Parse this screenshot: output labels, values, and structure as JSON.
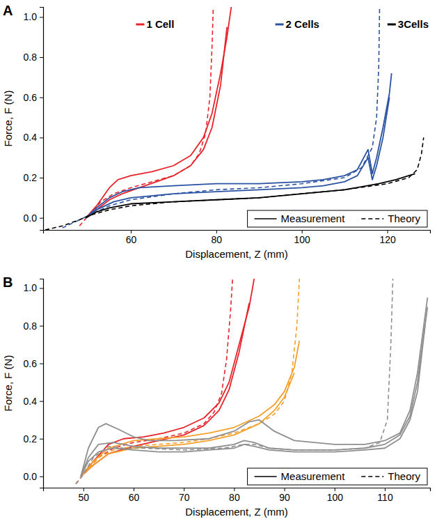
{
  "chart_data": [
    {
      "type": "line",
      "panel": "A",
      "x_label": "Displacement, Z (mm)",
      "y_label": "Force, F (N)",
      "xlim": [
        39.5,
        130
      ],
      "xticks": [
        60,
        80,
        100,
        120
      ],
      "ylim": [
        -0.06,
        1.05
      ],
      "yticks": [
        {
          "value": 0,
          "label": "0.0"
        },
        0.2,
        0.4,
        0.6,
        0.8,
        {
          "value": 1,
          "label": "1.0"
        }
      ],
      "legend": "lower right",
      "line_styles": [
        {
          "label": "Measurement",
          "line_style": "solid"
        },
        {
          "label": "Theory",
          "line_style": "dashed"
        }
      ],
      "series": [
        {
          "name": "1 Cell",
          "color": "#e8232a",
          "line_style": "solid",
          "x": [
            49.5,
            52,
            55,
            57,
            60,
            65,
            70,
            74,
            77,
            79,
            81,
            82.5,
            83.5
          ],
          "values": [
            0,
            0.06,
            0.15,
            0.19,
            0.21,
            0.23,
            0.26,
            0.31,
            0.4,
            0.52,
            0.72,
            0.9,
            1.05
          ]
        },
        {
          "name": "1 Cell",
          "color": "#e8232a",
          "line_style": "solid",
          "x": [
            49.5,
            52,
            55,
            58,
            62,
            66,
            70,
            74,
            77,
            79,
            81,
            82.5
          ],
          "values": [
            0,
            0.04,
            0.09,
            0.12,
            0.15,
            0.18,
            0.21,
            0.26,
            0.34,
            0.45,
            0.66,
            0.95
          ]
        },
        {
          "name": "1 Cell",
          "color": "#e8232a",
          "line_style": "dashed",
          "x": [
            48,
            50,
            53,
            56,
            60,
            65,
            70,
            74,
            76,
            77.5,
            78.5,
            79,
            79.3
          ],
          "values": [
            -0.04,
            0.01,
            0.08,
            0.12,
            0.15,
            0.18,
            0.21,
            0.26,
            0.32,
            0.42,
            0.6,
            0.85,
            1.05
          ]
        },
        {
          "name": "2 Cells",
          "color": "#2a52a3",
          "line_style": "solid",
          "x": [
            49.5,
            52,
            55,
            58,
            62,
            70,
            80,
            90,
            100,
            105,
            110,
            113,
            115.5,
            116.5,
            117.5,
            119,
            120.5,
            121
          ],
          "values": [
            0,
            0.05,
            0.1,
            0.13,
            0.15,
            0.16,
            0.17,
            0.17,
            0.18,
            0.19,
            0.21,
            0.24,
            0.34,
            0.22,
            0.3,
            0.45,
            0.62,
            0.72
          ]
        },
        {
          "name": "2 Cells",
          "color": "#2a52a3",
          "line_style": "solid",
          "x": [
            49.5,
            52,
            56,
            60,
            70,
            80,
            90,
            100,
            105,
            110,
            113,
            115.5,
            116.5,
            117.5,
            119,
            120.5
          ],
          "values": [
            0,
            0.04,
            0.08,
            0.1,
            0.12,
            0.13,
            0.14,
            0.15,
            0.16,
            0.18,
            0.21,
            0.3,
            0.19,
            0.26,
            0.4,
            0.6
          ]
        },
        {
          "name": "2 Cells",
          "color": "#2a52a3",
          "line_style": "dashed",
          "x": [
            44,
            48,
            50,
            55,
            60,
            70,
            80,
            90,
            100,
            110,
            114,
            116.5,
            117.5,
            118,
            118.2
          ],
          "values": [
            -0.05,
            -0.01,
            0.01,
            0.06,
            0.09,
            0.12,
            0.14,
            0.15,
            0.17,
            0.2,
            0.25,
            0.35,
            0.5,
            0.75,
            1.05
          ]
        },
        {
          "name": "3Cells",
          "color": "#000000",
          "line_style": "solid",
          "x": [
            49.5,
            52,
            55,
            60,
            70,
            80,
            90,
            100,
            110,
            118,
            122,
            125,
            126.5
          ],
          "values": [
            0,
            0.03,
            0.05,
            0.07,
            0.08,
            0.09,
            0.1,
            0.12,
            0.14,
            0.17,
            0.19,
            0.21,
            0.22
          ]
        },
        {
          "name": "3Cells",
          "color": "#000000",
          "line_style": "dashed",
          "x": [
            40,
            44,
            48,
            50,
            55,
            60,
            70,
            80,
            90,
            100,
            110,
            120,
            125,
            127,
            128,
            128.5
          ],
          "values": [
            -0.06,
            -0.04,
            -0.01,
            0.01,
            0.04,
            0.06,
            0.08,
            0.09,
            0.1,
            0.12,
            0.14,
            0.17,
            0.2,
            0.24,
            0.32,
            0.4
          ]
        }
      ]
    },
    {
      "type": "line",
      "panel": "B",
      "x_label": "Displacement, Z (mm)",
      "y_label": "Force, F (N)",
      "xlim": [
        42,
        119
      ],
      "xticks": [
        50,
        60,
        70,
        80,
        90,
        100,
        110
      ],
      "ylim": [
        -0.06,
        1.05
      ],
      "yticks": [
        {
          "value": 0,
          "label": "0.0"
        },
        0.2,
        0.4,
        0.6,
        0.8,
        {
          "value": 1,
          "label": "1.0"
        }
      ],
      "legend": "lower right",
      "line_styles": [
        {
          "label": "Measurement",
          "line_style": "solid"
        },
        {
          "label": "Theory",
          "line_style": "dashed"
        }
      ],
      "series": [
        {
          "color": "#e8232a",
          "line_style": "solid",
          "x": [
            49.5,
            52,
            55,
            58,
            62,
            66,
            70,
            74,
            77,
            79,
            81,
            83,
            84
          ],
          "values": [
            0,
            0.08,
            0.17,
            0.2,
            0.21,
            0.23,
            0.26,
            0.31,
            0.39,
            0.5,
            0.7,
            0.9,
            1.05
          ]
        },
        {
          "color": "#e8232a",
          "line_style": "solid",
          "x": [
            49.5,
            52,
            55,
            60,
            65,
            70,
            74,
            77,
            79,
            81,
            83
          ],
          "values": [
            0,
            0.06,
            0.12,
            0.16,
            0.19,
            0.22,
            0.27,
            0.35,
            0.46,
            0.66,
            0.92
          ]
        },
        {
          "color": "#e8232a",
          "line_style": "dashed",
          "x": [
            48.5,
            50,
            53,
            56,
            60,
            65,
            70,
            74,
            76,
            77.5,
            78.5,
            79.3,
            79.7
          ],
          "values": [
            -0.04,
            0.01,
            0.1,
            0.15,
            0.18,
            0.2,
            0.23,
            0.28,
            0.34,
            0.44,
            0.62,
            0.88,
            1.05
          ]
        },
        {
          "color": "#f5a02a",
          "line_style": "solid",
          "x": [
            49.5,
            52,
            55,
            60,
            65,
            70,
            75,
            80,
            85,
            88,
            90,
            92,
            93
          ],
          "values": [
            0,
            0.08,
            0.15,
            0.19,
            0.2,
            0.21,
            0.23,
            0.26,
            0.32,
            0.38,
            0.45,
            0.58,
            0.72
          ]
        },
        {
          "color": "#f5a02a",
          "line_style": "solid",
          "x": [
            49.5,
            52,
            55,
            60,
            65,
            70,
            75,
            80,
            85,
            88,
            90,
            92
          ],
          "values": [
            0,
            0.06,
            0.12,
            0.15,
            0.16,
            0.17,
            0.19,
            0.22,
            0.28,
            0.35,
            0.42,
            0.55
          ]
        },
        {
          "color": "#f5a02a",
          "line_style": "dashed",
          "x": [
            48.5,
            50,
            53,
            56,
            60,
            65,
            70,
            75,
            80,
            85,
            88,
            90,
            91.5,
            92.5,
            93
          ],
          "values": [
            -0.04,
            0.01,
            0.1,
            0.14,
            0.16,
            0.17,
            0.18,
            0.2,
            0.23,
            0.28,
            0.33,
            0.4,
            0.55,
            0.8,
            1.05
          ]
        },
        {
          "color": "#8f8f8f",
          "line_style": "solid",
          "x": [
            49.5,
            51,
            53,
            54.5,
            57,
            60,
            63,
            68,
            75,
            80,
            83,
            85,
            88,
            92,
            100,
            106,
            110,
            113,
            115,
            116.5,
            117.5,
            118.5
          ],
          "values": [
            0,
            0.15,
            0.26,
            0.28,
            0.25,
            0.21,
            0.19,
            0.19,
            0.2,
            0.24,
            0.29,
            0.3,
            0.24,
            0.19,
            0.17,
            0.17,
            0.19,
            0.23,
            0.35,
            0.55,
            0.75,
            0.95
          ]
        },
        {
          "color": "#8f8f8f",
          "line_style": "solid",
          "x": [
            49.5,
            51,
            53,
            56,
            60,
            65,
            70,
            75,
            80,
            82,
            84,
            87,
            92,
            100,
            106,
            110,
            113,
            115,
            116.5,
            117.5,
            118.5
          ],
          "values": [
            0,
            0.1,
            0.17,
            0.18,
            0.16,
            0.15,
            0.15,
            0.15,
            0.17,
            0.19,
            0.18,
            0.15,
            0.14,
            0.14,
            0.15,
            0.17,
            0.22,
            0.32,
            0.5,
            0.7,
            0.9
          ]
        },
        {
          "color": "#8f8f8f",
          "line_style": "solid",
          "x": [
            49.5,
            51,
            53,
            56,
            60,
            65,
            70,
            75,
            80,
            82,
            84,
            87,
            92,
            100,
            106,
            110,
            113,
            115,
            116.5,
            118
          ],
          "values": [
            0,
            0.08,
            0.13,
            0.15,
            0.14,
            0.13,
            0.13,
            0.14,
            0.15,
            0.17,
            0.16,
            0.14,
            0.13,
            0.13,
            0.14,
            0.15,
            0.2,
            0.3,
            0.45,
            0.8
          ]
        },
        {
          "color": "#8f8f8f",
          "line_style": "dashed",
          "x": [
            48.5,
            50,
            52,
            55,
            58,
            62,
            70,
            78,
            82,
            84,
            87,
            92,
            100,
            106,
            109,
            110.5,
            111.2,
            111.6
          ],
          "values": [
            -0.04,
            0.01,
            0.1,
            0.16,
            0.15,
            0.15,
            0.14,
            0.15,
            0.17,
            0.17,
            0.15,
            0.14,
            0.14,
            0.15,
            0.18,
            0.3,
            0.7,
            1.05
          ]
        }
      ]
    }
  ]
}
